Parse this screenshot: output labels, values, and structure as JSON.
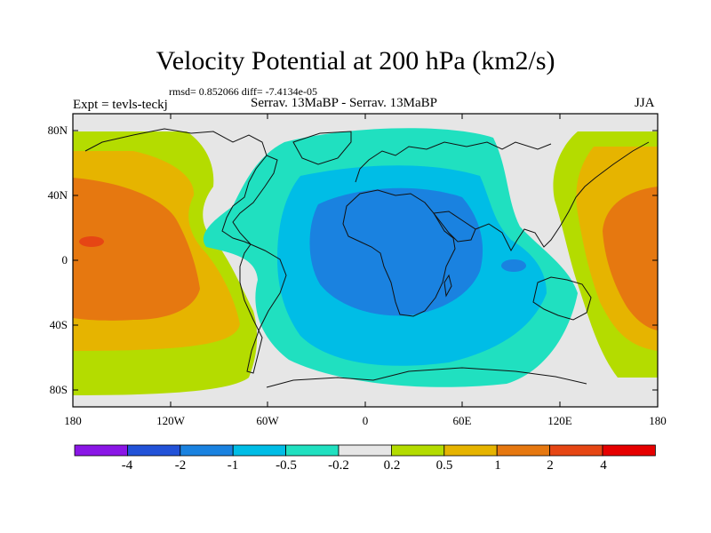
{
  "title": "Velocity Potential at 200 hPa (km2/s)",
  "stats": "rmsd= 0.852066 diff= -7.4134e-05",
  "expt_label": "Expt = tevls-teckj",
  "subtitle": "Serrav.   13MaBP - Serrav.   13MaBP",
  "season": "JJA",
  "lat_labels": [
    "80N",
    "40N",
    "0",
    "40S",
    "80S"
  ],
  "lon_labels": [
    "180",
    "120W",
    "60W",
    "0",
    "60E",
    "120E",
    "180"
  ],
  "colorbar": {
    "labels": [
      "-4",
      "-2",
      "-1",
      "-0.5",
      "-0.2",
      "0.2",
      "0.5",
      "1",
      "2",
      "4"
    ],
    "colors": [
      "#8a16e6",
      "#2252d8",
      "#1a82e0",
      "#00bde6",
      "#20e0c0",
      "#e6e6e6",
      "#b4dc00",
      "#e6b400",
      "#e67810",
      "#e64614",
      "#e60000"
    ]
  },
  "field_colors": {
    "neutral": "#e6e6e6",
    "light_cyan": "#20e0c0",
    "cyan": "#00bde6",
    "blue": "#1a82e0",
    "lime": "#b4dc00",
    "gold": "#e6b400",
    "orange": "#e67810",
    "red": "#e64614"
  }
}
